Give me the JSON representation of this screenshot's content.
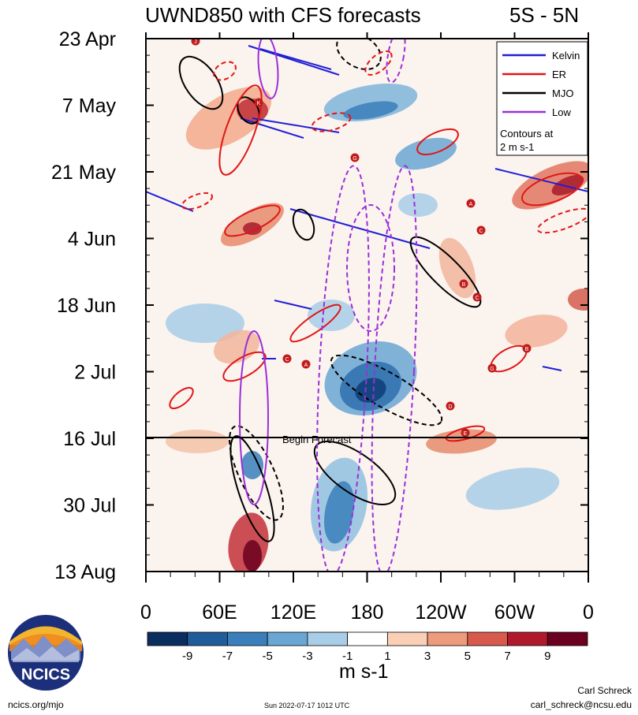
{
  "chart_data": {
    "type": "heatmap",
    "title": "UWND850 with CFS forecasts",
    "region": "5S - 5N",
    "y_ticks": [
      "23 Apr",
      "7 May",
      "21 May",
      "4 Jun",
      "18 Jun",
      "2 Jul",
      "16 Jul",
      "30 Jul",
      "13 Aug"
    ],
    "x_ticks": [
      "0",
      "60E",
      "120E",
      "180",
      "120W",
      "60W",
      "0"
    ],
    "colorbar_labels": [
      "-9",
      "-7",
      "-5",
      "-3",
      "-1",
      "1",
      "3",
      "5",
      "7",
      "9"
    ],
    "colorbar_colors": [
      "#0a2e5e",
      "#1f5c9a",
      "#3a7fbb",
      "#6aa6d3",
      "#a8cde6",
      "#ffffff",
      "#f9cfb6",
      "#ee9a7c",
      "#d85a4c",
      "#b0192c",
      "#6b0020"
    ],
    "units": "m s-1",
    "forecast_start_label": "Begin Forecast",
    "legend": {
      "entries": [
        {
          "name": "Kelvin",
          "color": "#1f1fd6"
        },
        {
          "name": "ER",
          "color": "#e01616"
        },
        {
          "name": "MJO",
          "color": "#000000"
        },
        {
          "name": "Low",
          "color": "#9b30d9"
        }
      ],
      "note_line1": "Contours at",
      "note_line2": "2 m s-1"
    }
  },
  "branding": {
    "logo_text": "NCICS",
    "url": "ncics.org/mjo",
    "timestamp": "Sun 2022-07-17 1012 UTC",
    "author": "Carl Schreck",
    "email": "carl_schreck@ncsu.edu"
  },
  "storm_letters": [
    "J",
    "K",
    "G",
    "A",
    "C",
    "B",
    "C",
    "A",
    "C",
    "B",
    "G",
    "D",
    "E"
  ]
}
